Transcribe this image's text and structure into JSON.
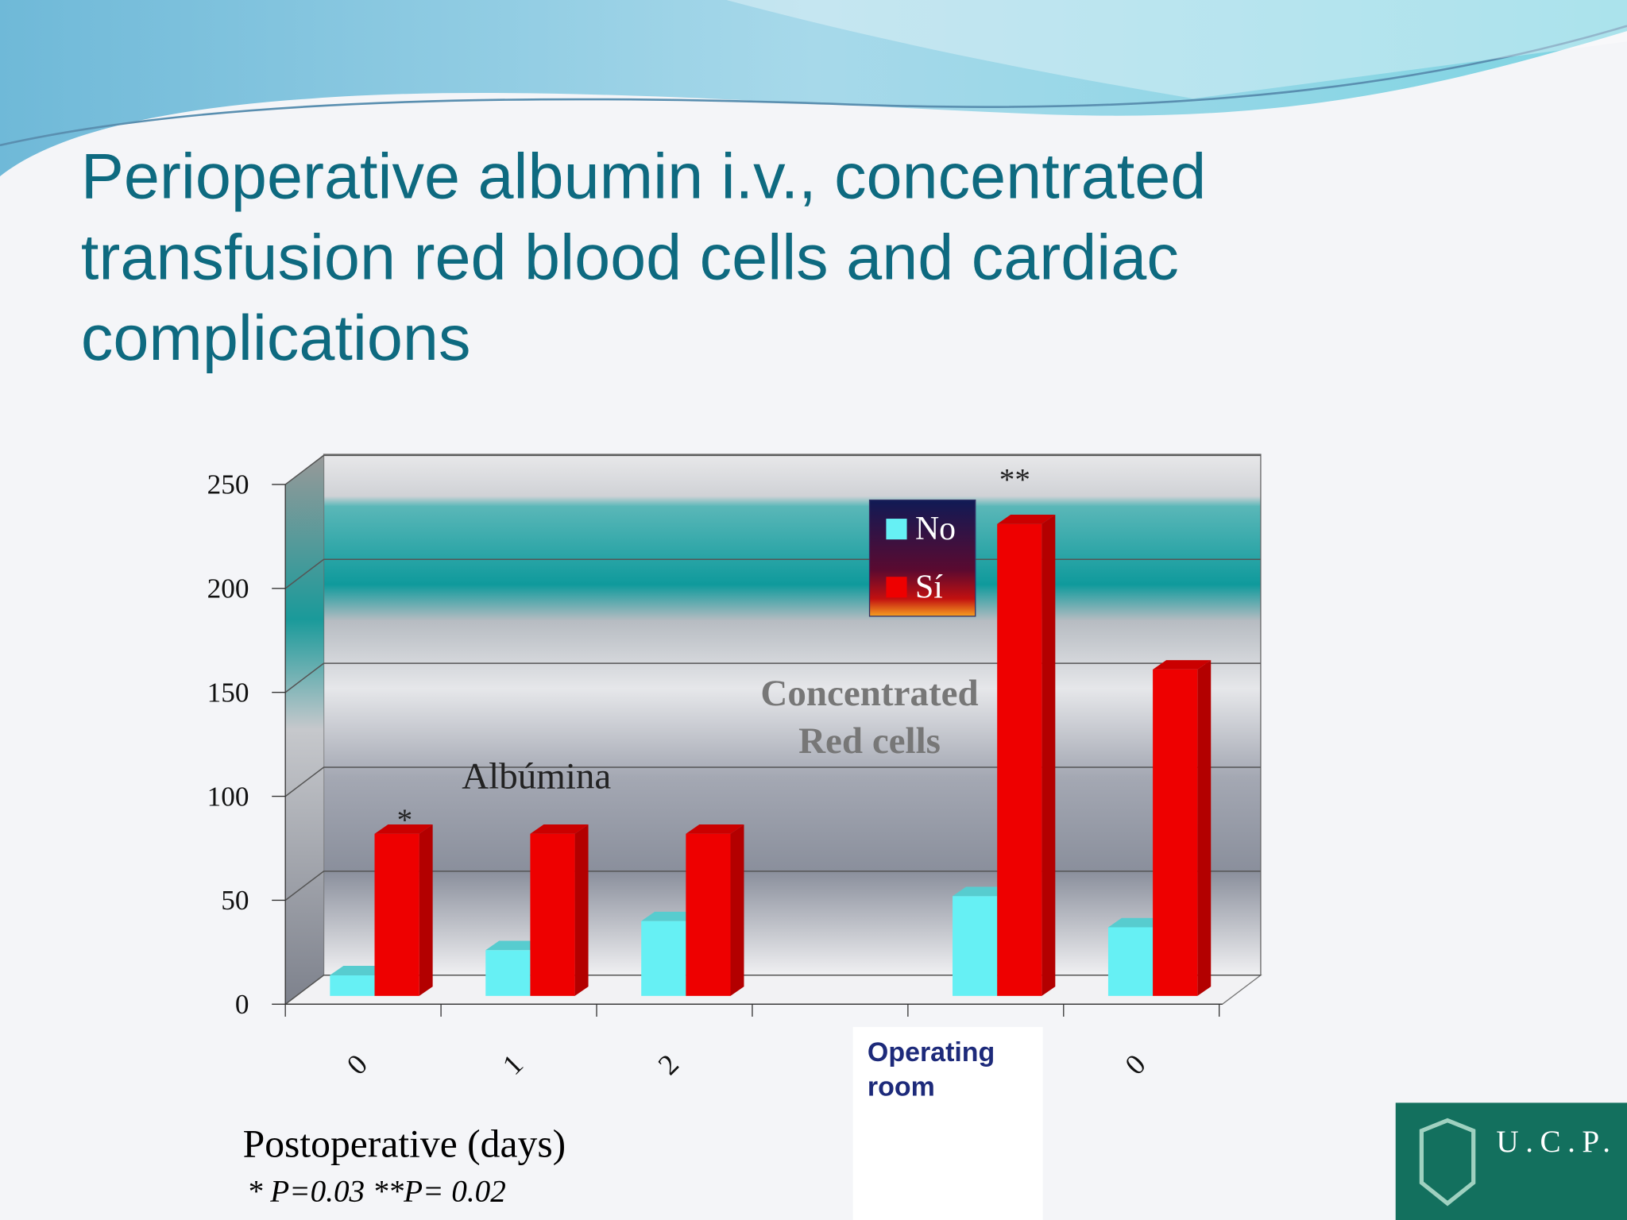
{
  "title": "Perioperative albumin i.v., concentrated transfusion red blood cells and cardiac complications",
  "chart_data": {
    "type": "bar3d",
    "categories": [
      "0",
      "1",
      "2",
      null,
      "Operating room",
      "0"
    ],
    "series": [
      {
        "name": "No",
        "color": "#66f0f4",
        "values": [
          10,
          22,
          36,
          null,
          48,
          33
        ]
      },
      {
        "name": "Sí",
        "color": "#ee0000",
        "values": [
          78,
          78,
          78,
          null,
          227,
          157
        ]
      }
    ],
    "ylim": [
      0,
      250
    ],
    "yticks": [
      0,
      50,
      100,
      150,
      200,
      250
    ],
    "grid": true,
    "legend": "top",
    "annotations": [
      "Albúmina",
      "Concentrated Red cells",
      "*",
      "**"
    ],
    "xlabel": "Postoperative (days)",
    "note": "* P=0.03 **P= 0.02"
  },
  "logo": "U.C.P."
}
